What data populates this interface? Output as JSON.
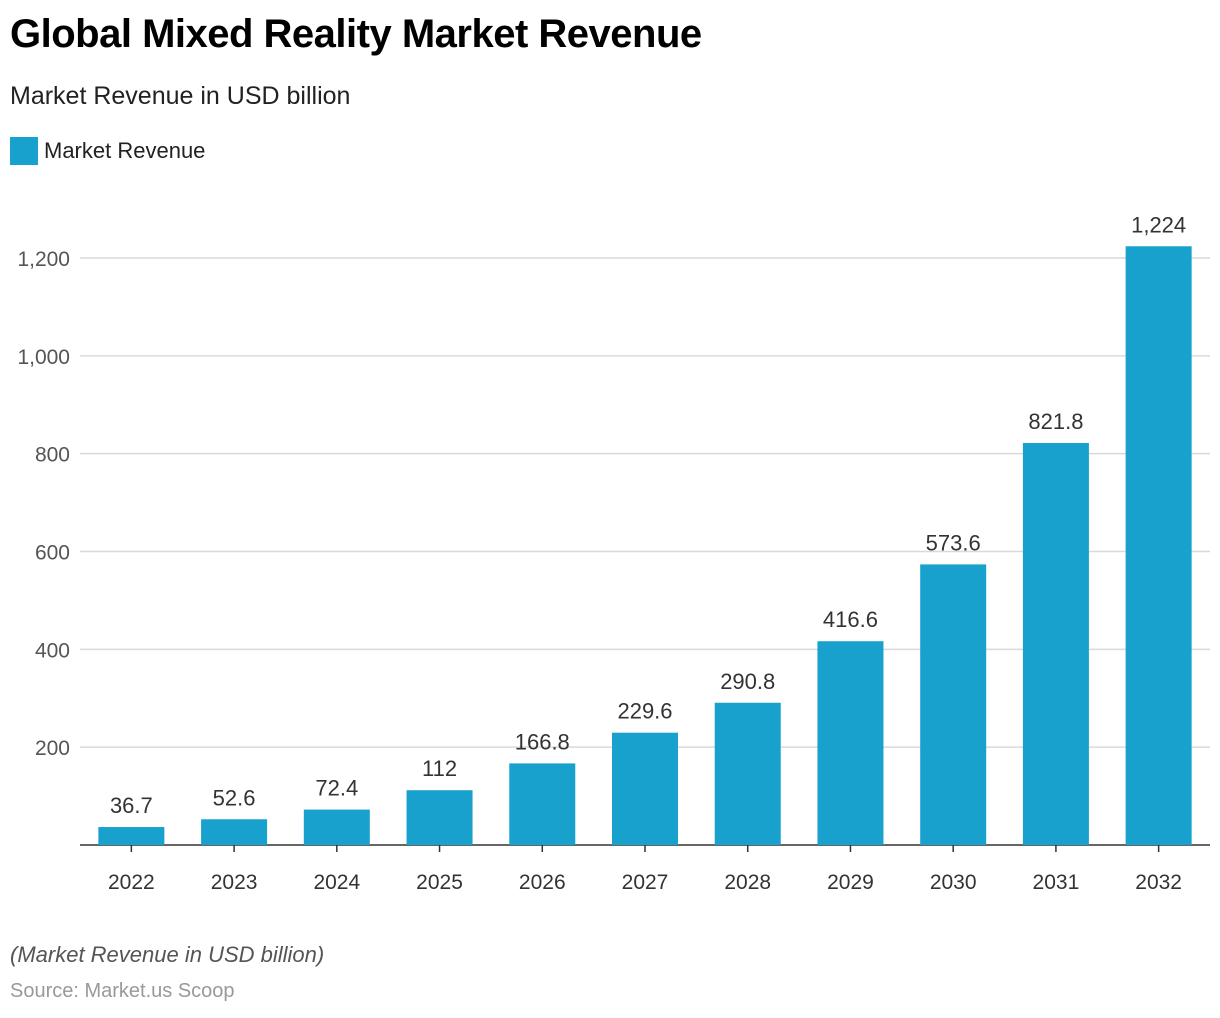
{
  "title": "Global Mixed Reality Market Revenue",
  "subtitle": "Market Revenue in USD billion",
  "note": "(Market Revenue in USD billion)",
  "source": "Source: Market.us Scoop",
  "colors": {
    "bar": "#18a1cd"
  },
  "chart_data": {
    "type": "bar",
    "categories": [
      "2022",
      "2023",
      "2024",
      "2025",
      "2026",
      "2027",
      "2028",
      "2029",
      "2030",
      "2031",
      "2032"
    ],
    "series": [
      {
        "name": "Market Revenue",
        "values": [
          36.7,
          52.6,
          72.4,
          112,
          166.8,
          229.6,
          290.8,
          416.6,
          573.6,
          821.8,
          1224
        ]
      }
    ],
    "data_labels": [
      "36.7",
      "52.6",
      "72.4",
      "112",
      "166.8",
      "229.6",
      "290.8",
      "416.6",
      "573.6",
      "821.8",
      "1,224"
    ],
    "yticks": [
      200,
      400,
      600,
      800,
      1000,
      1200
    ],
    "ytick_labels": [
      "200",
      "400",
      "600",
      "800",
      "1,000",
      "1,200"
    ],
    "ylim": [
      0,
      1200
    ],
    "grid": true,
    "legend": "top-left",
    "xlabel": "",
    "ylabel": ""
  }
}
